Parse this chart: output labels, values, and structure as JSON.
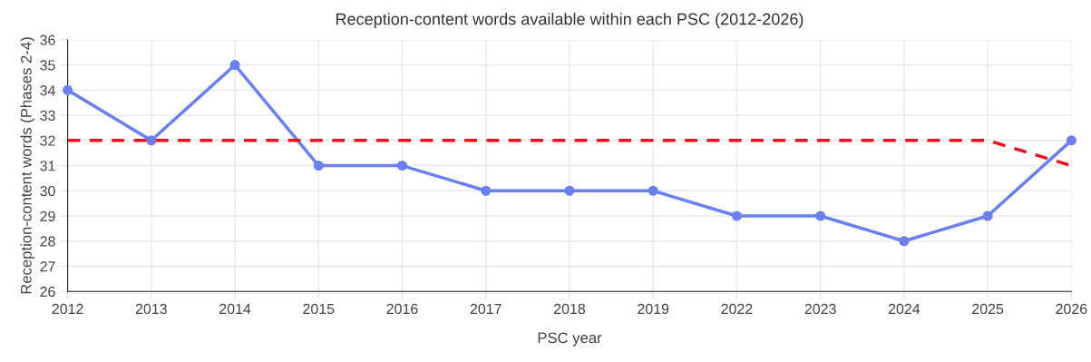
{
  "chart_data": {
    "type": "line",
    "title": "Reception-content words available within each PSC (2012-2026)",
    "xlabel": "PSC year",
    "ylabel": "Reception-content words (Phases 2-4)",
    "categories": [
      "2012",
      "2013",
      "2014",
      "2015",
      "2016",
      "2017",
      "2018",
      "2019",
      "2022",
      "2023",
      "2024",
      "2025",
      "2026"
    ],
    "series": [
      {
        "color": "#6b80f0",
        "marker": "circle",
        "line_style": "solid",
        "values": [
          34,
          32,
          35,
          31,
          31,
          30,
          30,
          30,
          29,
          29,
          28,
          29,
          32
        ]
      },
      {
        "color": "#e8101a",
        "marker": "none",
        "line_style": "dashed",
        "values": [
          32,
          32,
          32,
          32,
          32,
          32,
          32,
          32,
          32,
          32,
          32,
          32,
          31
        ]
      }
    ],
    "ylim": [
      26,
      36
    ],
    "yticks": [
      26,
      27,
      28,
      29,
      30,
      31,
      32,
      33,
      34,
      35,
      36
    ],
    "grid": true
  }
}
